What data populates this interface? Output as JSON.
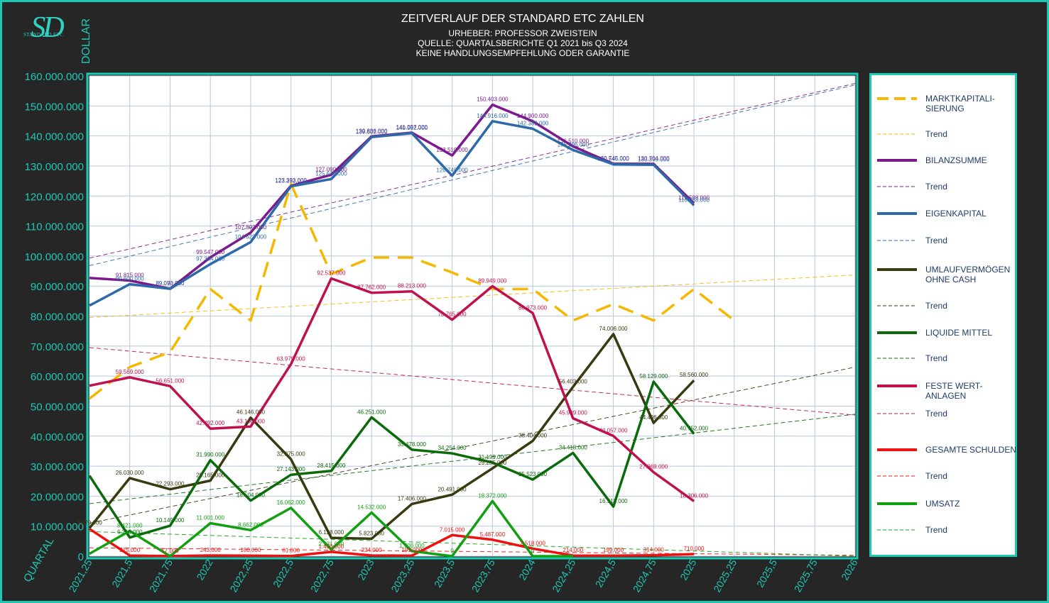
{
  "header": {
    "title": "ZEITVERLAUF DER STANDARD ETC ZAHLEN",
    "author": "URHEBER: PROFESSOR ZWEISTEIN",
    "source": "QUELLE: QUARTALSBERICHTE Q1 2021 bis Q3 2024",
    "disclaimer": "KEINE HANDLUNGSEMPFEHLUNG ODER GARANTIE"
  },
  "logo": {
    "mark": "SD",
    "text": "STANDARD ETC"
  },
  "colors": {
    "accent": "#1ec9b4",
    "plot_bg": "#ffffff",
    "grid": "#b8c8dc",
    "tick_text": "#1ec9b4"
  },
  "chart_data": {
    "type": "line",
    "title": "ZEITVERLAUF DER STANDARD ETC ZAHLEN",
    "xlabel": "QUARTAL",
    "ylabel": "DOLLAR",
    "xlim": [
      2021.25,
      2026
    ],
    "ylim": [
      0,
      160000000
    ],
    "grid": true,
    "legend_position": "right",
    "x_ticks": [
      2021.25,
      2021.5,
      2021.75,
      2022,
      2022.25,
      2022.5,
      2022.75,
      2023,
      2023.25,
      2023.5,
      2023.75,
      2024,
      2024.25,
      2024.5,
      2024.75,
      2025,
      2025.25,
      2025.5,
      2025.75,
      2026
    ],
    "x_tick_labels": [
      "2021,25",
      "2021,5",
      "2021,75",
      "2022",
      "2022,25",
      "2022,5",
      "2022,75",
      "2023",
      "2023,25",
      "2023,5",
      "2023,75",
      "2024",
      "2024,25",
      "2024,5",
      "2024,75",
      "2025",
      "2025,25",
      "2025,5",
      "2025,75",
      "2026"
    ],
    "y_tick_labels": [
      "0",
      "10.000.000",
      "20.000.000",
      "30.000.000",
      "40.000.000",
      "50.000.000",
      "60.000.000",
      "70.000.000",
      "80.000.000",
      "90.000.000",
      "100.000.000",
      "110.000.000",
      "120.000.000",
      "130.000.000",
      "140.000.000",
      "150.000.000",
      "160.000.000"
    ],
    "series": [
      {
        "name": "MARKTKAPITALI-\nSIERUNG",
        "color": "#f5b800",
        "style": "dashed-thick",
        "x": [
          2021.25,
          2021.5,
          2021.75,
          2022,
          2022.25,
          2022.5,
          2022.75,
          2023,
          2023.25,
          2023.5,
          2023.75,
          2024,
          2024.25,
          2024.5,
          2024.75,
          2025,
          2025.25
        ],
        "y": [
          52500000,
          63000000,
          68000000,
          89000000,
          78500000,
          124000000,
          94000000,
          99500000,
          99500000,
          94500000,
          89000000,
          89000000,
          78500000,
          84000000,
          78500000,
          89000000,
          78500000
        ],
        "labels": [],
        "trend": [
          79500000,
          93700000
        ]
      },
      {
        "name": "BILANZSUMME",
        "color": "#7b1b8c",
        "style": "solid-thick",
        "x": [
          2021.25,
          2021.5,
          2021.75,
          2022,
          2022.25,
          2022.5,
          2022.75,
          2023,
          2023.25,
          2023.5,
          2023.75,
          2024,
          2024.25,
          2024.5,
          2024.75,
          2025
        ],
        "y": [
          92700000,
          91815000,
          89090000,
          99547000,
          107803000,
          123393000,
          127090000,
          139836000,
          141097000,
          133510000,
          150403000,
          144900000,
          136510000,
          130745000,
          130704000,
          117598000
        ],
        "labels": [
          "",
          "91.815.000",
          "89.090.000",
          "99.547.000",
          "107.803.000",
          "123.393.000",
          "127.090.000",
          "139.836.000",
          "141.097.000",
          "133.510.000",
          "150.403.000",
          "144.900.000",
          "136.510.000",
          "130.745.000",
          "130.704.000",
          "117.598.000"
        ],
        "trend": [
          99300000,
          157500000
        ]
      },
      {
        "name": "EIGENKAPITAL",
        "color": "#2e6aa8",
        "style": "solid-thick",
        "x": [
          2021.25,
          2021.5,
          2021.75,
          2022,
          2022.25,
          2022.5,
          2022.75,
          2023,
          2023.25,
          2023.5,
          2023.75,
          2024,
          2024.25,
          2024.5,
          2024.75,
          2025
        ],
        "y": [
          83500000,
          90600000,
          89073000,
          97304000,
          104623000,
          123232000,
          125640000,
          139602000,
          140902000,
          126745000,
          144916000,
          142382000,
          135296000,
          130546000,
          130390000,
          116888000
        ],
        "labels": [
          "",
          "90.600.000",
          "89.073.000",
          "97.304.000",
          "104.623.000",
          "123.232.000",
          "125.640.000",
          "139.602.000",
          "140.902.000",
          "126.745.000",
          "144.916.000",
          "142.382.000",
          "135.296.000",
          "130.546.000",
          "130.390.000",
          "116.888.000"
        ],
        "trend": [
          96800000,
          157000000
        ]
      },
      {
        "name": "UMLAUFVERMÖGEN\nOHNE CASH",
        "color": "#3a3a10",
        "style": "solid-thick",
        "x": [
          2021.25,
          2021.5,
          2021.75,
          2022,
          2022.25,
          2022.5,
          2022.75,
          2023,
          2023.25,
          2023.5,
          2023.75,
          2024,
          2024.25,
          2024.5,
          2024.75,
          2025
        ],
        "y": [
          9370000,
          26030000,
          22293000,
          25165000,
          46146000,
          32275000,
          6128000,
          5823000,
          17406000,
          20491000,
          29255000,
          38404000,
          56403000,
          74006000,
          44406000,
          58560000
        ],
        "labels": [
          "9.370.000",
          "26.030.000",
          "22.293.000",
          "25.165.000",
          "46.146.000",
          "32.275.000",
          "6.128.000",
          "5.823.000",
          "17.406.000",
          "20.491.000",
          "29.255.000",
          "38.404.000",
          "56.403.000",
          "74.006.000",
          "44.406.000",
          "58.560.000"
        ],
        "trend": [
          11000000,
          63000000
        ]
      },
      {
        "name": "LIQUIDE MITTEL",
        "color": "#0b6b0b",
        "style": "solid-thick",
        "x": [
          2021.25,
          2021.5,
          2021.75,
          2022,
          2022.25,
          2022.5,
          2022.75,
          2023,
          2023.25,
          2023.5,
          2023.75,
          2024,
          2024.25,
          2024.5,
          2024.75,
          2025
        ],
        "y": [
          26800000,
          6216000,
          10149000,
          31990000,
          18504000,
          27143000,
          28415000,
          46251000,
          35478000,
          34254000,
          31199000,
          25523000,
          34418000,
          16513000,
          58129000,
          40752000
        ],
        "labels": [
          "",
          "6.216.000",
          "10.149.000",
          "31.990.000",
          "18.504.000",
          "27.143.000",
          "28.415.000",
          "46.251.000",
          "35.478.000",
          "34.254.000",
          "31.199.000",
          "25.523.000",
          "34.418.000",
          "16.513.000",
          "58.129.000",
          "40.752.000"
        ],
        "trend": [
          17500000,
          47300000
        ]
      },
      {
        "name": "FESTE WERT-\nANLAGEN",
        "color": "#c0104e",
        "style": "solid-thick",
        "x": [
          2021.25,
          2021.5,
          2021.75,
          2022,
          2022.25,
          2022.5,
          2022.75,
          2023,
          2023.25,
          2023.5,
          2023.75,
          2024,
          2024.25,
          2024.5,
          2024.75,
          2025
        ],
        "y": [
          56800000,
          59569000,
          56651000,
          42492000,
          43190000,
          63979000,
          92537000,
          87762000,
          88213000,
          78765000,
          89949000,
          80973000,
          45939000,
          40057000,
          27969000,
          18306000
        ],
        "labels": [
          "",
          "59.569.000",
          "56.651.000",
          "42.492.000",
          "43.190.000",
          "63.979.000",
          "92.537.000",
          "87.762.000",
          "88.213.000",
          "78.765.000",
          "89.949.000",
          "80.973.000",
          "45.939.000",
          "40.057.000",
          "27.969.000",
          "18.306.000"
        ],
        "trend": [
          69500000,
          47000000
        ]
      },
      {
        "name": "GESAMTE SCHULDEN",
        "color": "#ee1111",
        "style": "solid-thick",
        "x": [
          2021.25,
          2021.5,
          2021.75,
          2022,
          2022.25,
          2022.5,
          2022.75,
          2023,
          2023.25,
          2023.5,
          2023.75,
          2024,
          2024.25,
          2024.5,
          2024.75,
          2025
        ],
        "y": [
          9100000,
          215000,
          17000,
          243000,
          180000,
          61000,
          1450000,
          234000,
          195000,
          7015000,
          5487000,
          2518000,
          214000,
          199000,
          314000,
          710000
        ],
        "labels": [
          "",
          "215.000",
          "17.000",
          "243.000",
          "180.000",
          "61.000",
          "1.450.000",
          "234.000",
          "195.000",
          "7.015.000",
          "5.487.000",
          "2.518.000",
          "214.000",
          "199.000",
          "314.000",
          "710.000"
        ],
        "trend": [
          2800000,
          300000
        ]
      },
      {
        "name": "UMSATZ",
        "color": "#12a012",
        "style": "solid-thick",
        "x": [
          2021.25,
          2021.5,
          2021.75,
          2022,
          2022.25,
          2022.5,
          2022.75,
          2023,
          2023.25,
          2023.5,
          2023.75,
          2024,
          2024.25
        ],
        "y": [
          800000,
          8421000,
          0,
          11001000,
          8662000,
          16062000,
          2231000,
          14532000,
          1700000,
          0,
          18372000,
          0,
          0
        ],
        "labels": [
          "",
          "8.421.000",
          "",
          "11.001.000",
          "8.662.000",
          "16.062.000",
          "2.231.000",
          "14.532.000",
          "1.700.000",
          "0",
          "18.372.000",
          "0",
          ""
        ],
        "trend": [
          8200000,
          0
        ]
      }
    ]
  },
  "legend": {
    "trend_label": "Trend"
  }
}
